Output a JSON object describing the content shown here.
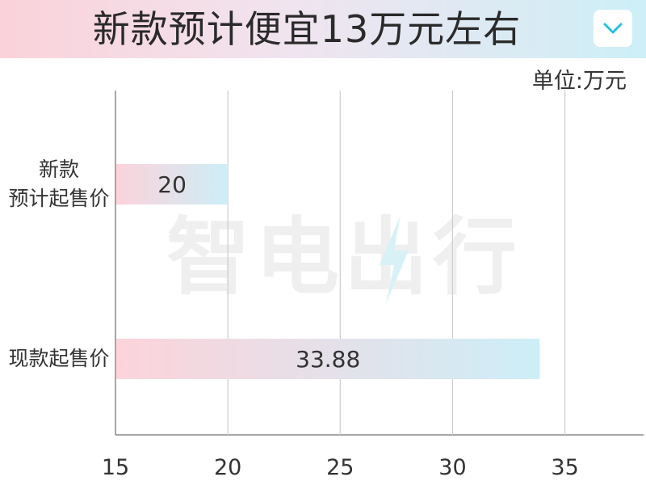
{
  "header": {
    "title": "新款预计便宜13万元左右",
    "dropdown_icon": "chevron-down-icon"
  },
  "unit_label": "单位:万元",
  "watermark": {
    "text": "智电出行",
    "icon": "lightning-bolt-icon"
  },
  "colors": {
    "bar_start": "#fcd3db",
    "bar_end": "#cdeef7",
    "accent": "#27c1d9",
    "grid": "#cccccc"
  },
  "chart_data": {
    "type": "bar",
    "orientation": "horizontal",
    "title": "新款预计便宜13万元左右",
    "categories": [
      "新款\n预计起售价",
      "现款起售价"
    ],
    "category_lines": [
      [
        "新款",
        "预计起售价"
      ],
      [
        "现款起售价"
      ]
    ],
    "values": [
      20,
      33.88
    ],
    "value_labels": [
      "20",
      "33.88"
    ],
    "unit": "单位:万元",
    "xlim": [
      15,
      38.5
    ],
    "xticks": [
      15,
      20,
      25,
      30,
      35
    ],
    "tick_labels": [
      "15",
      "20",
      "25",
      "30",
      "35"
    ],
    "grid": true
  }
}
